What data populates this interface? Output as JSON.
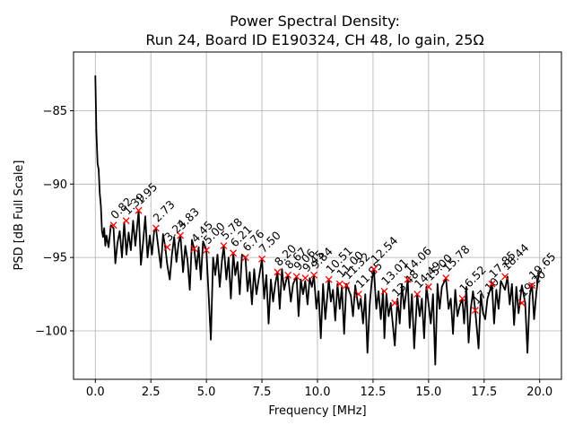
{
  "chart_data": {
    "type": "line",
    "title": "Power Spectral Density:",
    "subtitle": "Run 24, Board ID E190324, CH 48, lo gain, 25Ω",
    "xlabel": "Frequency [MHz]",
    "ylabel": "PSD [dB Full Scale]",
    "xlim": [
      -0.98,
      20.98
    ],
    "ylim": [
      -103.3,
      -81.0
    ],
    "grid": true,
    "x_ticks": [
      0.0,
      2.5,
      5.0,
      7.5,
      10.0,
      12.5,
      15.0,
      17.5,
      20.0
    ],
    "x_tick_labels": [
      "0.0",
      "2.5",
      "5.0",
      "7.5",
      "10.0",
      "12.5",
      "15.0",
      "17.5",
      "20.0"
    ],
    "y_ticks": [
      -85,
      -90,
      -95,
      -100
    ],
    "y_tick_labels": [
      "−85",
      "−90",
      "−95",
      "−100"
    ],
    "series": [
      {
        "color": "#000000",
        "x": [
          0.0,
          0.05,
          0.1,
          0.15,
          0.2,
          0.25,
          0.3,
          0.35,
          0.4,
          0.45,
          0.5,
          0.6,
          0.7,
          0.82,
          0.9,
          1.0,
          1.1,
          1.2,
          1.3,
          1.4,
          1.5,
          1.6,
          1.7,
          1.8,
          1.95,
          2.05,
          2.15,
          2.25,
          2.35,
          2.45,
          2.55,
          2.65,
          2.73,
          2.85,
          2.95,
          3.05,
          3.15,
          3.24,
          3.35,
          3.45,
          3.55,
          3.65,
          3.75,
          3.83,
          3.95,
          4.05,
          4.15,
          4.25,
          4.35,
          4.45,
          4.55,
          4.65,
          4.75,
          4.85,
          5.0,
          5.1,
          5.2,
          5.3,
          5.4,
          5.5,
          5.6,
          5.7,
          5.78,
          5.9,
          6.0,
          6.1,
          6.21,
          6.3,
          6.4,
          6.5,
          6.6,
          6.76,
          6.85,
          6.95,
          7.05,
          7.15,
          7.25,
          7.35,
          7.5,
          7.6,
          7.7,
          7.8,
          7.9,
          8.0,
          8.1,
          8.2,
          8.3,
          8.4,
          8.5,
          8.6,
          8.67,
          8.8,
          8.9,
          9.06,
          9.15,
          9.25,
          9.35,
          9.45,
          9.55,
          9.65,
          9.75,
          9.84,
          9.95,
          10.05,
          10.15,
          10.25,
          10.35,
          10.51,
          10.6,
          10.7,
          10.8,
          10.9,
          11.0,
          11.1,
          11.2,
          11.3,
          11.5,
          11.6,
          11.7,
          11.85,
          11.95,
          12.05,
          12.15,
          12.25,
          12.35,
          12.45,
          12.54,
          12.65,
          12.75,
          12.85,
          12.95,
          13.01,
          13.1,
          13.2,
          13.3,
          13.48,
          13.6,
          13.7,
          13.8,
          13.9,
          14.06,
          14.15,
          14.25,
          14.35,
          14.49,
          14.6,
          14.7,
          14.8,
          14.9,
          15.0,
          15.1,
          15.2,
          15.3,
          15.4,
          15.5,
          15.6,
          15.78,
          15.9,
          16.0,
          16.1,
          16.2,
          16.3,
          16.4,
          16.52,
          16.6,
          16.7,
          16.8,
          16.9,
          17.0,
          17.1,
          17.25,
          17.35,
          17.45,
          17.55,
          17.65,
          17.85,
          17.95,
          18.05,
          18.15,
          18.25,
          18.44,
          18.55,
          18.65,
          18.75,
          18.85,
          18.95,
          19.05,
          19.15,
          19.2,
          19.35,
          19.45,
          19.55,
          19.65,
          19.75,
          19.85,
          19.95,
          20.0
        ],
        "values": [
          -82.6,
          -86.5,
          -88.6,
          -89.0,
          -90.6,
          -91.5,
          -93.2,
          -93.6,
          -93.0,
          -94.2,
          -93.5,
          -94.3,
          -92.8,
          -93.0,
          -95.4,
          -94.0,
          -93.2,
          -95.0,
          -92.6,
          -94.8,
          -93.3,
          -94.5,
          -92.5,
          -94.2,
          -91.8,
          -95.5,
          -94.0,
          -92.2,
          -95.0,
          -93.5,
          -94.8,
          -93.2,
          -93.0,
          -94.5,
          -95.7,
          -93.4,
          -94.3,
          -95.5,
          -96.5,
          -94.8,
          -93.6,
          -95.3,
          -94.0,
          -93.5,
          -96.0,
          -94.2,
          -95.2,
          -97.2,
          -93.8,
          -94.4,
          -95.8,
          -94.3,
          -96.5,
          -93.9,
          -94.5,
          -97.5,
          -100.6,
          -95.0,
          -96.2,
          -94.8,
          -97.0,
          -95.2,
          -94.2,
          -96.5,
          -95.0,
          -97.8,
          -94.7,
          -96.2,
          -95.3,
          -97.5,
          -94.8,
          -95.0,
          -97.3,
          -96.0,
          -98.2,
          -95.8,
          -97.5,
          -96.5,
          -95.1,
          -97.8,
          -96.2,
          -99.5,
          -96.5,
          -98.0,
          -96.8,
          -96.0,
          -98.5,
          -95.8,
          -97.2,
          -96.5,
          -96.2,
          -98.0,
          -96.8,
          -96.3,
          -99.0,
          -96.5,
          -97.5,
          -96.6,
          -98.2,
          -96.4,
          -97.0,
          -96.2,
          -98.5,
          -97.3,
          -100.5,
          -96.8,
          -99.2,
          -96.5,
          -98.0,
          -97.2,
          -99.3,
          -96.8,
          -98.5,
          -97.0,
          -100.2,
          -96.8,
          -97.6,
          -99.0,
          -96.9,
          -98.5,
          -97.8,
          -99.5,
          -97.5,
          -101.5,
          -98.2,
          -96.5,
          -95.8,
          -98.5,
          -97.3,
          -99.2,
          -97.3,
          -100.5,
          -97.5,
          -99.0,
          -98.1,
          -101.0,
          -97.8,
          -99.5,
          -96.8,
          -98.5,
          -96.5,
          -99.8,
          -97.5,
          -101.2,
          -97.5,
          -99.0,
          -97.8,
          -100.5,
          -97.0,
          -98.2,
          -99.5,
          -97.5,
          -102.3,
          -96.8,
          -98.5,
          -97.0,
          -96.4,
          -98.5,
          -97.8,
          -100.2,
          -97.2,
          -99.0,
          -98.3,
          -97.8,
          -99.5,
          -97.0,
          -100.8,
          -98.5,
          -97.3,
          -98.6,
          -101.2,
          -97.5,
          -98.8,
          -99.2,
          -97.8,
          -96.8,
          -99.5,
          -97.2,
          -98.5,
          -96.6,
          -97.2,
          -96.3,
          -98.2,
          -96.8,
          -99.6,
          -97.0,
          -98.8,
          -97.5,
          -96.9,
          -98.1,
          -101.5,
          -97.6,
          -96.8,
          -99.2,
          -97.4,
          -96.2,
          -96.0
        ]
      }
    ],
    "peaks": [
      {
        "x": 0.82,
        "y": -92.8,
        "label": "0.82"
      },
      {
        "x": 1.39,
        "y": -92.5,
        "label": "1.39"
      },
      {
        "x": 1.95,
        "y": -91.8,
        "label": "1.95"
      },
      {
        "x": 2.73,
        "y": -93.0,
        "label": "2.73"
      },
      {
        "x": 3.24,
        "y": -94.3,
        "label": "3.24"
      },
      {
        "x": 3.83,
        "y": -93.5,
        "label": "3.83"
      },
      {
        "x": 4.45,
        "y": -94.4,
        "label": "4.45"
      },
      {
        "x": 5.0,
        "y": -94.5,
        "label": "5.00"
      },
      {
        "x": 5.78,
        "y": -94.2,
        "label": "5.78"
      },
      {
        "x": 6.21,
        "y": -94.7,
        "label": "6.21"
      },
      {
        "x": 6.76,
        "y": -95.0,
        "label": "6.76"
      },
      {
        "x": 7.5,
        "y": -95.1,
        "label": "7.50"
      },
      {
        "x": 8.2,
        "y": -96.0,
        "label": "8.20"
      },
      {
        "x": 8.67,
        "y": -96.2,
        "label": "8.67"
      },
      {
        "x": 9.06,
        "y": -96.3,
        "label": "9.06"
      },
      {
        "x": 9.45,
        "y": -96.4,
        "label": "9.45"
      },
      {
        "x": 9.84,
        "y": -96.2,
        "label": "9.84"
      },
      {
        "x": 10.51,
        "y": -96.5,
        "label": "10.51"
      },
      {
        "x": 11.0,
        "y": -96.8,
        "label": "11.00"
      },
      {
        "x": 11.3,
        "y": -96.9,
        "label": "11.32"
      },
      {
        "x": 11.85,
        "y": -97.5,
        "label": "11.85"
      },
      {
        "x": 12.54,
        "y": -95.8,
        "label": "12.54"
      },
      {
        "x": 13.01,
        "y": -97.3,
        "label": "13.01"
      },
      {
        "x": 13.48,
        "y": -98.1,
        "label": "13.48"
      },
      {
        "x": 14.06,
        "y": -96.5,
        "label": "14.06"
      },
      {
        "x": 14.49,
        "y": -97.5,
        "label": "14.49"
      },
      {
        "x": 15.0,
        "y": -97.0,
        "label": "15.00"
      },
      {
        "x": 15.78,
        "y": -96.4,
        "label": "15.78"
      },
      {
        "x": 16.52,
        "y": -97.8,
        "label": "16.52"
      },
      {
        "x": 17.1,
        "y": -98.6,
        "label": "17.10"
      },
      {
        "x": 17.85,
        "y": -96.8,
        "label": "17.85"
      },
      {
        "x": 18.44,
        "y": -96.3,
        "label": "18.44"
      },
      {
        "x": 19.2,
        "y": -98.1,
        "label": "19.20"
      },
      {
        "x": 19.65,
        "y": -96.9,
        "label": "19.65"
      }
    ],
    "peak_marker_color": "#ff0000"
  }
}
